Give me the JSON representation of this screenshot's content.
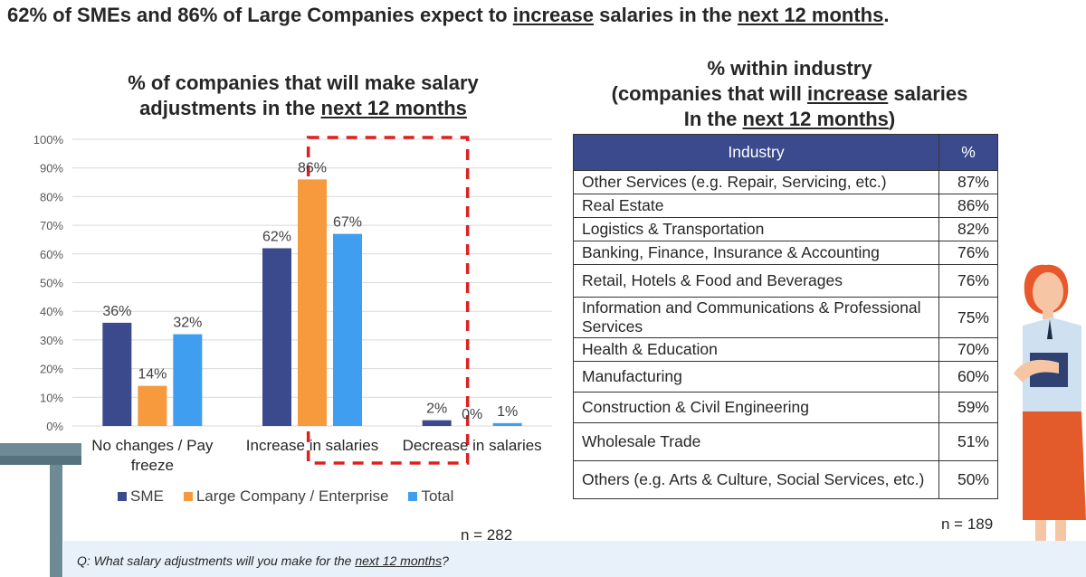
{
  "headline": {
    "part1": "62% of SMEs and 86% of Large Companies expect to ",
    "u1": "increase",
    "part2": " salaries in the ",
    "u2": "next 12 months",
    "part3": "."
  },
  "chart_title": {
    "line1": "% of companies that will make salary",
    "line2_pre": "adjustments in the ",
    "line2_u": "next 12 months"
  },
  "chart_data": {
    "type": "bar",
    "categories": [
      "No changes / Pay freeze",
      "Increase in salaries",
      "Decrease in salaries"
    ],
    "series": [
      {
        "name": "SME",
        "values": [
          36,
          62,
          2
        ],
        "labels": [
          "36%",
          "62%",
          "2%"
        ],
        "color": "#3b4a8c"
      },
      {
        "name": "Large Company / Enterprise",
        "values": [
          14,
          86,
          0
        ],
        "labels": [
          "14%",
          "86%",
          "0%"
        ],
        "color": "#f79a3e"
      },
      {
        "name": "Total",
        "values": [
          32,
          67,
          1
        ],
        "labels": [
          "32%",
          "67%",
          "1%"
        ],
        "color": "#3f9ef0"
      }
    ],
    "ylim": [
      0,
      100
    ],
    "yticks": [
      "0%",
      "10%",
      "20%",
      "30%",
      "40%",
      "50%",
      "60%",
      "70%",
      "80%",
      "90%",
      "100%"
    ],
    "grid": true,
    "legend": "bottom",
    "highlight_category": "Increase in salaries",
    "n_label": "n = 282"
  },
  "table": {
    "title_line1": "% within industry",
    "title_line2_pre": "(companies that will ",
    "title_line2_u": "increase",
    "title_line2_post": " salaries",
    "title_line3_pre": "In the ",
    "title_line3_u": "next 12 months",
    "title_line3_post": ")",
    "header_industry": "Industry",
    "header_pct": "%",
    "rows": [
      {
        "industry": "Other Services (e.g. Repair, Servicing, etc.)",
        "pct": "87%"
      },
      {
        "industry": "Real Estate",
        "pct": "86%"
      },
      {
        "industry": "Logistics & Transportation",
        "pct": "82%"
      },
      {
        "industry": "Banking, Finance, Insurance & Accounting",
        "pct": "76%"
      },
      {
        "industry": "Retail, Hotels & Food and Beverages",
        "pct": "76%"
      },
      {
        "industry": "Information and Communications & Professional Services",
        "pct": "75%"
      },
      {
        "industry": "Health & Education",
        "pct": "70%"
      },
      {
        "industry": "Manufacturing",
        "pct": "60%"
      },
      {
        "industry": "Construction & Civil Engineering",
        "pct": "59%"
      },
      {
        "industry": "Wholesale Trade",
        "pct": "51%"
      },
      {
        "industry": "Others (e.g. Arts & Culture, Social Services, etc.)",
        "pct": "50%"
      }
    ],
    "header_color": "#3b4a8c",
    "n_label": "n = 189"
  },
  "question": {
    "pre": "Q: What salary adjustments will you make for the ",
    "u": "next 12 months",
    "post": "?"
  }
}
